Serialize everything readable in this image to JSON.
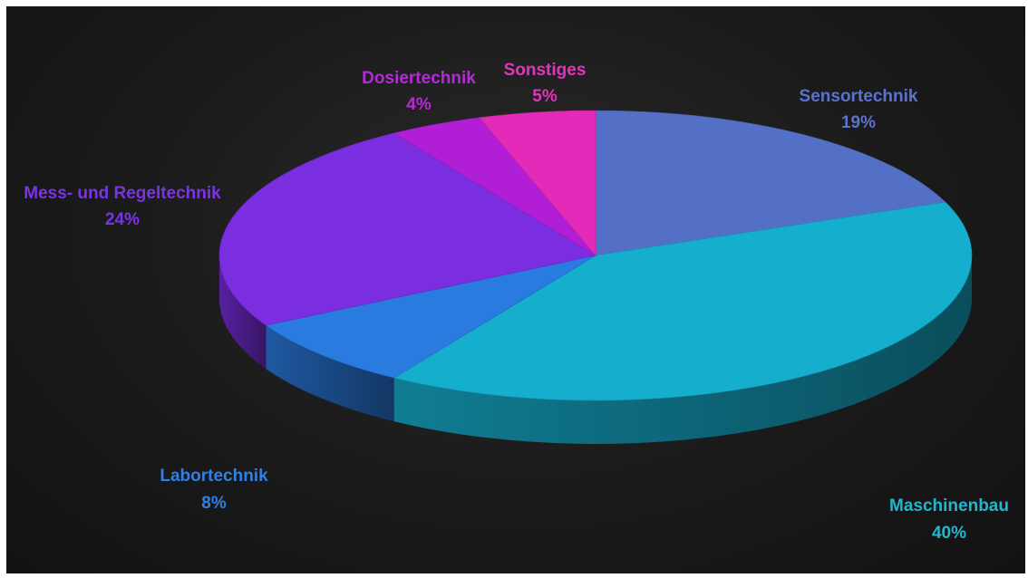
{
  "chart_data": {
    "type": "pie",
    "style": "3d",
    "slices": [
      {
        "name": "Sensortechnik",
        "value": 19,
        "label": "19%",
        "color": "#5470c6",
        "label_color": "#5b72d0"
      },
      {
        "name": "Maschinenbau",
        "value": 40,
        "label": "40%",
        "color": "#16aecd",
        "label_color": "#22b7cf"
      },
      {
        "name": "Labortechnik",
        "value": 8,
        "label": "8%",
        "color": "#2a7be0",
        "label_color": "#2d80e6"
      },
      {
        "name": "Mess- und Regeltechnik",
        "value": 24,
        "label": "24%",
        "color": "#7a2ee0",
        "label_color": "#7a33e6"
      },
      {
        "name": "Dosiertechnik",
        "value": 4,
        "label": "4%",
        "color": "#b01fd6",
        "label_color": "#b52ad8"
      },
      {
        "name": "Sonstiges",
        "value": 5,
        "label": "5%",
        "color": "#e32ab8",
        "label_color": "#e233c0"
      }
    ],
    "background": "#1c1c1c"
  }
}
